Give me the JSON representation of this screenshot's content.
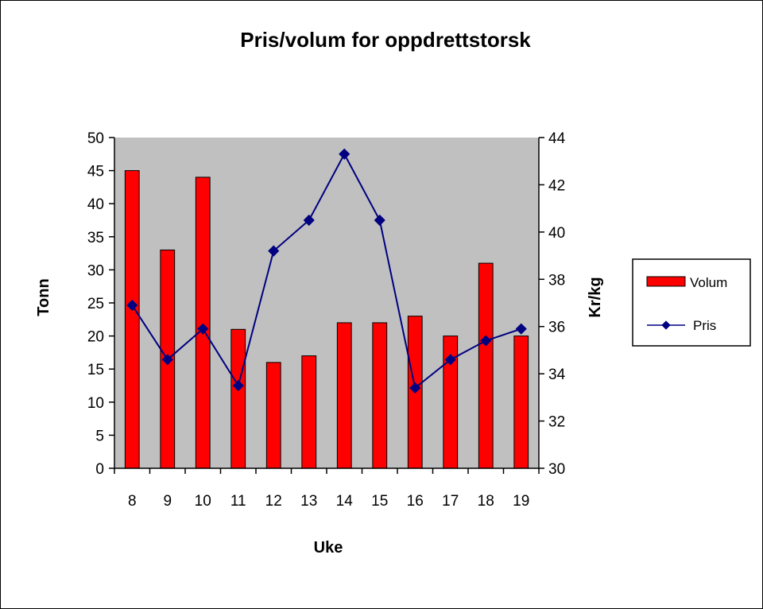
{
  "chart_data": {
    "type": "bar",
    "title": "Pris/volum for oppdrettstorsk",
    "xlabel": "Uke",
    "ylabel": "Tonn",
    "y2label": "Kr/kg",
    "categories": [
      "8",
      "9",
      "10",
      "11",
      "12",
      "13",
      "14",
      "15",
      "16",
      "17",
      "18",
      "19"
    ],
    "ylim": [
      0,
      50
    ],
    "yticks": [
      0,
      5,
      10,
      15,
      20,
      25,
      30,
      35,
      40,
      45,
      50
    ],
    "y2lim": [
      30,
      44
    ],
    "y2ticks": [
      30,
      32,
      34,
      36,
      38,
      40,
      42,
      44
    ],
    "series": [
      {
        "name": "Volum",
        "type": "bar",
        "axis": "left",
        "values": [
          45,
          33,
          44,
          21,
          16,
          17,
          22,
          22,
          23,
          20,
          31,
          20
        ]
      },
      {
        "name": "Pris",
        "type": "line",
        "axis": "right",
        "values": [
          36.9,
          34.6,
          35.9,
          33.5,
          39.2,
          40.5,
          43.3,
          40.5,
          33.4,
          34.6,
          35.4,
          35.9
        ]
      }
    ],
    "colors": {
      "bar": "#ff0000",
      "bar_edge": "#000000",
      "line": "#000080",
      "plot_bg": "#c0c0c0"
    },
    "legend": "right",
    "grid": false
  }
}
